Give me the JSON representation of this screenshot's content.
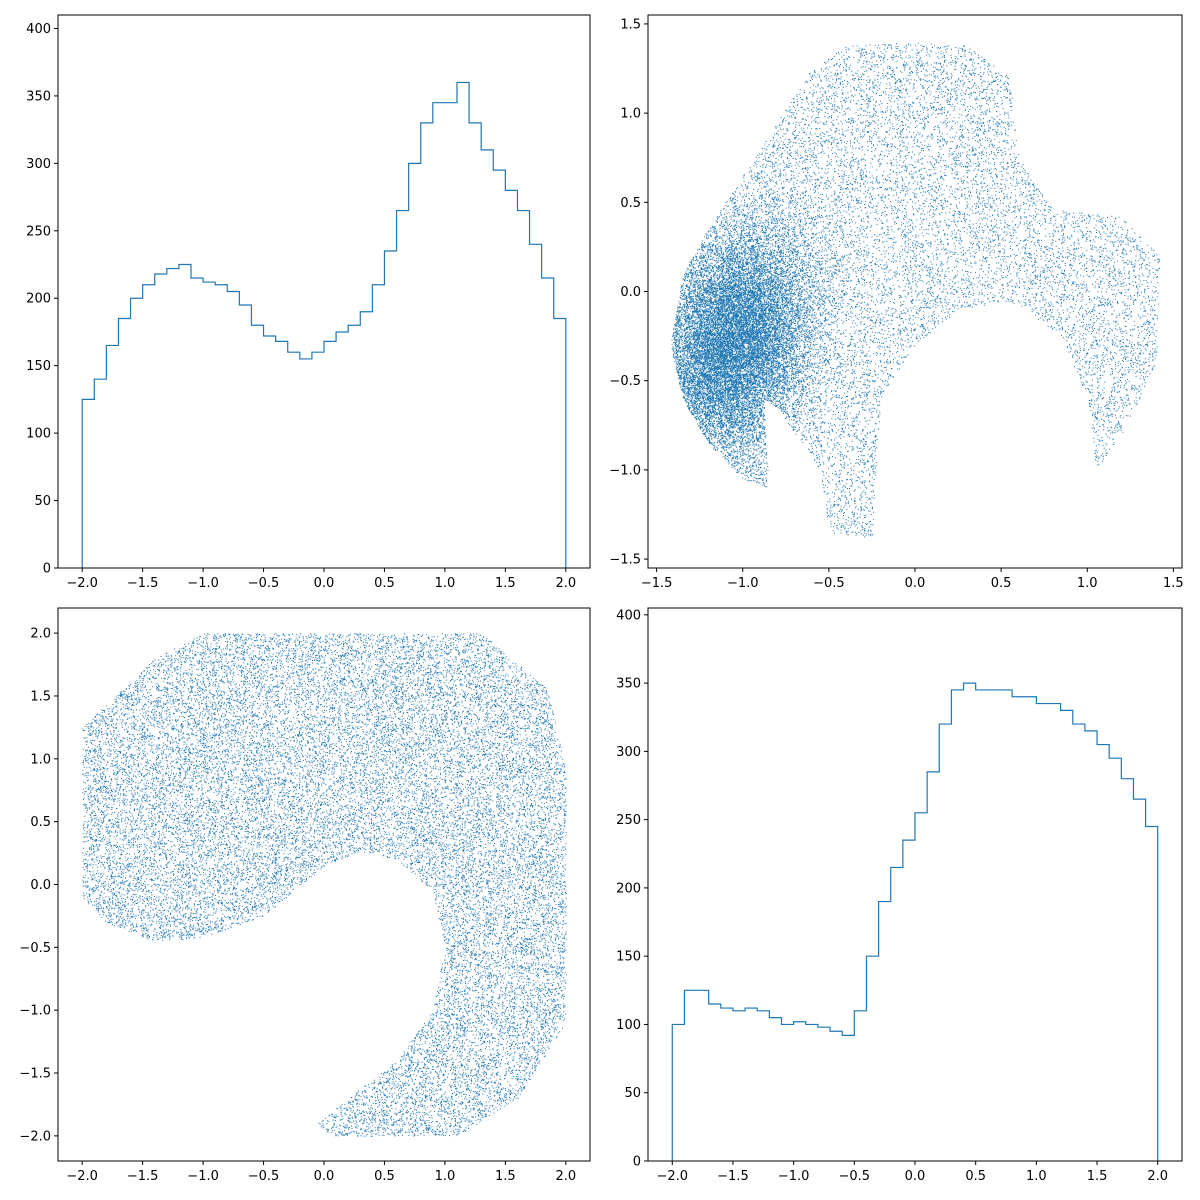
{
  "figure": {
    "layout": "2x2 grid of subplots"
  },
  "colors": {
    "series": "#1f77b4",
    "axes": "#000000",
    "background": "#ffffff"
  },
  "chart_data": [
    {
      "type": "histogram",
      "panel": "top-left",
      "title": "",
      "xlabel": "",
      "ylabel": "",
      "xlim": [
        -2.2,
        2.2
      ],
      "ylim": [
        0,
        410
      ],
      "xticks": [
        -2.0,
        -1.5,
        -1.0,
        -0.5,
        0.0,
        0.5,
        1.0,
        1.5,
        2.0
      ],
      "yticks": [
        0,
        50,
        100,
        150,
        200,
        250,
        300,
        350,
        400
      ],
      "histtype": "step",
      "bin_range": [
        -2.0,
        2.0
      ],
      "bin_count": 40,
      "counts": [
        125,
        140,
        165,
        185,
        200,
        210,
        218,
        222,
        225,
        215,
        212,
        210,
        205,
        195,
        180,
        172,
        168,
        160,
        155,
        160,
        168,
        175,
        180,
        190,
        210,
        235,
        265,
        300,
        330,
        345,
        345,
        360,
        330,
        310,
        295,
        280,
        265,
        240,
        215,
        185
      ]
    },
    {
      "type": "scatter",
      "panel": "top-right",
      "title": "",
      "xlabel": "",
      "ylabel": "",
      "xlim": [
        -1.55,
        1.55
      ],
      "ylim": [
        -1.55,
        1.55
      ],
      "xticks": [
        -1.5,
        -1.0,
        -0.5,
        0.0,
        0.5,
        1.0,
        1.5
      ],
      "yticks": [
        -1.5,
        -1.0,
        -0.5,
        0.0,
        0.5,
        1.0,
        1.5
      ],
      "marker": "pixel",
      "point_count": 60000,
      "description_of_point_cloud": "dense cluster near (-1.2, -0.3), fanning to a dome up to y=1.4 and a hook reaching x=1.4"
    },
    {
      "type": "scatter",
      "panel": "bottom-left",
      "title": "",
      "xlabel": "",
      "ylabel": "",
      "xlim": [
        -2.2,
        2.2
      ],
      "ylim": [
        -2.2,
        2.2
      ],
      "xticks": [
        -2.0,
        -1.5,
        -1.0,
        -0.5,
        0.0,
        0.5,
        1.0,
        1.5,
        2.0
      ],
      "yticks": [
        -2.0,
        -1.5,
        -1.0,
        -0.5,
        0.0,
        0.5,
        1.0,
        1.5,
        2.0
      ],
      "marker": "pixel",
      "point_count": 40000,
      "description_of_point_cloud": "uniform points inside a square region with a curved hook-shaped void in the lower middle"
    },
    {
      "type": "histogram",
      "panel": "bottom-right",
      "title": "",
      "xlabel": "",
      "ylabel": "",
      "xlim": [
        -2.2,
        2.2
      ],
      "ylim": [
        0,
        405
      ],
      "xticks": [
        -2.0,
        -1.5,
        -1.0,
        -0.5,
        0.0,
        0.5,
        1.0,
        1.5,
        2.0
      ],
      "yticks": [
        0,
        50,
        100,
        150,
        200,
        250,
        300,
        350,
        400
      ],
      "histtype": "step",
      "bin_range": [
        -2.0,
        2.0
      ],
      "bin_count": 40,
      "counts": [
        100,
        125,
        125,
        115,
        112,
        110,
        112,
        110,
        105,
        100,
        102,
        100,
        98,
        95,
        92,
        110,
        150,
        190,
        215,
        235,
        255,
        285,
        320,
        345,
        350,
        345,
        345,
        345,
        340,
        340,
        335,
        335,
        330,
        320,
        315,
        305,
        295,
        280,
        265,
        245
      ]
    }
  ]
}
